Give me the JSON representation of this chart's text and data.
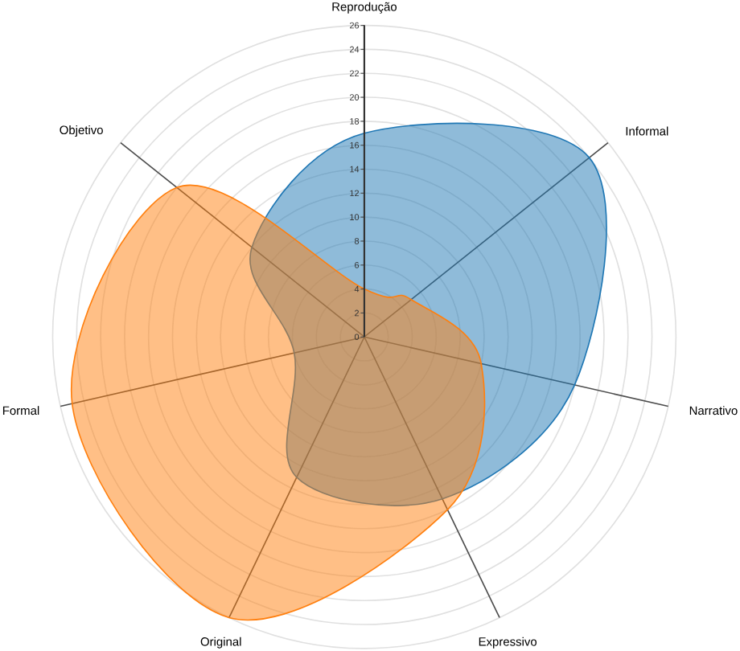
{
  "chart_data": {
    "type": "radar",
    "categories": [
      "Reprodução",
      "Informal",
      "Narrativo",
      "Expressivo",
      "Original",
      "Formal",
      "Objetivo"
    ],
    "series": [
      {
        "color": "#1f77b4",
        "values": [
          17,
          24,
          18,
          15,
          13,
          6,
          12
        ]
      },
      {
        "color": "#ff7f0e",
        "values": [
          4,
          5,
          10,
          16,
          26,
          25,
          20
        ]
      }
    ],
    "ylim": [
      0,
      26
    ],
    "yticks": [
      0,
      2,
      4,
      6,
      8,
      10,
      12,
      14,
      16,
      18,
      20,
      22,
      24,
      26
    ],
    "grid": true
  }
}
